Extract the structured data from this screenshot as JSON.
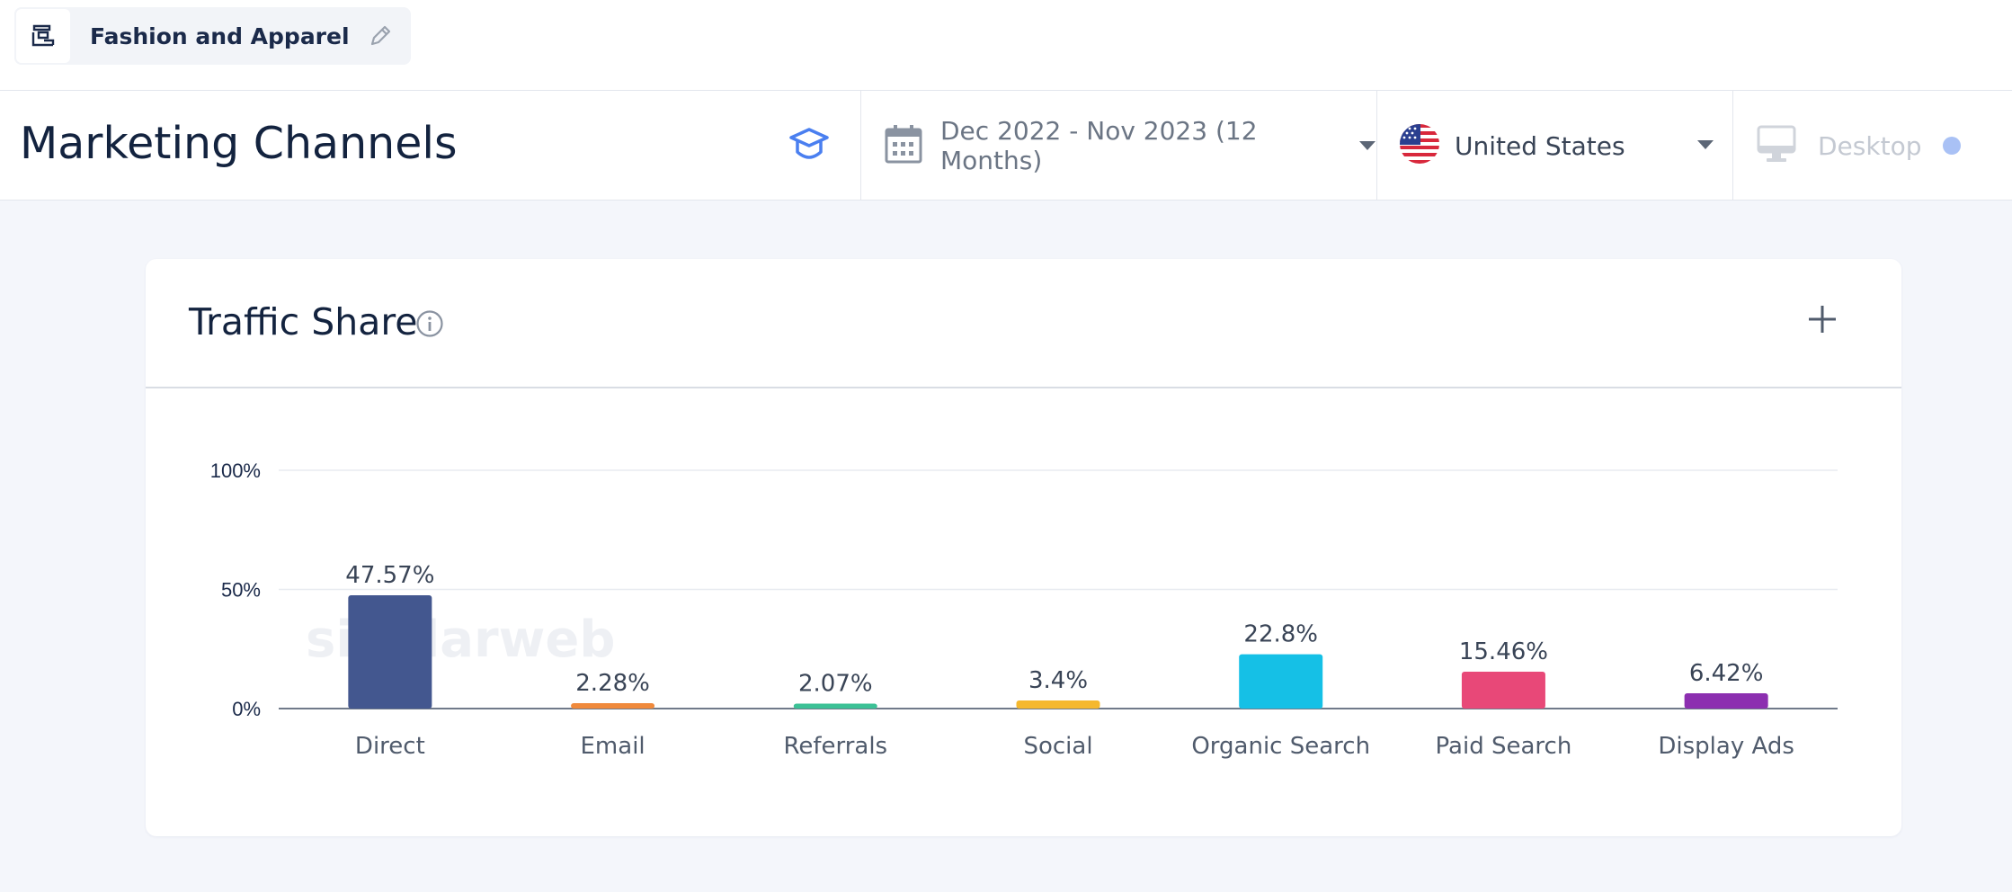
{
  "topbar": {
    "segment_label": "Fashion and Apparel",
    "segment_icon": "storefront-icon",
    "edit_icon": "pencil-icon"
  },
  "header": {
    "title": "Marketing Channels",
    "education_icon": "graduation-cap-icon",
    "date_range": "Dec 2022 - Nov 2023 (12 Months)",
    "country": "United States",
    "device": "Desktop"
  },
  "card": {
    "title": "Traffic Share",
    "watermark": "similarweb"
  },
  "colors": {
    "accent": "#4a7ff0",
    "direct": "#43578f",
    "email": "#f08a3c",
    "referrals": "#3cc196",
    "social": "#f5b82e",
    "organic_search": "#15c0e6",
    "paid_search": "#e84878",
    "display_ads": "#8c2fb0"
  },
  "chart_data": {
    "type": "bar",
    "title": "Traffic Share",
    "categories": [
      "Direct",
      "Email",
      "Referrals",
      "Social",
      "Organic Search",
      "Paid Search",
      "Display Ads"
    ],
    "values": [
      47.57,
      2.28,
      2.07,
      3.4,
      22.8,
      15.46,
      6.42
    ],
    "value_labels": [
      "47.57%",
      "2.28%",
      "2.07%",
      "3.4%",
      "22.8%",
      "15.46%",
      "6.42%"
    ],
    "colors": [
      "#43578f",
      "#f08a3c",
      "#3cc196",
      "#f5b82e",
      "#15c0e6",
      "#e84878",
      "#8c2fb0"
    ],
    "yticks": [
      "0%",
      "50%",
      "100%"
    ],
    "ytick_values": [
      0,
      50,
      100
    ],
    "ylim": [
      0,
      100
    ],
    "grid": true,
    "xlabel": "",
    "ylabel": ""
  }
}
